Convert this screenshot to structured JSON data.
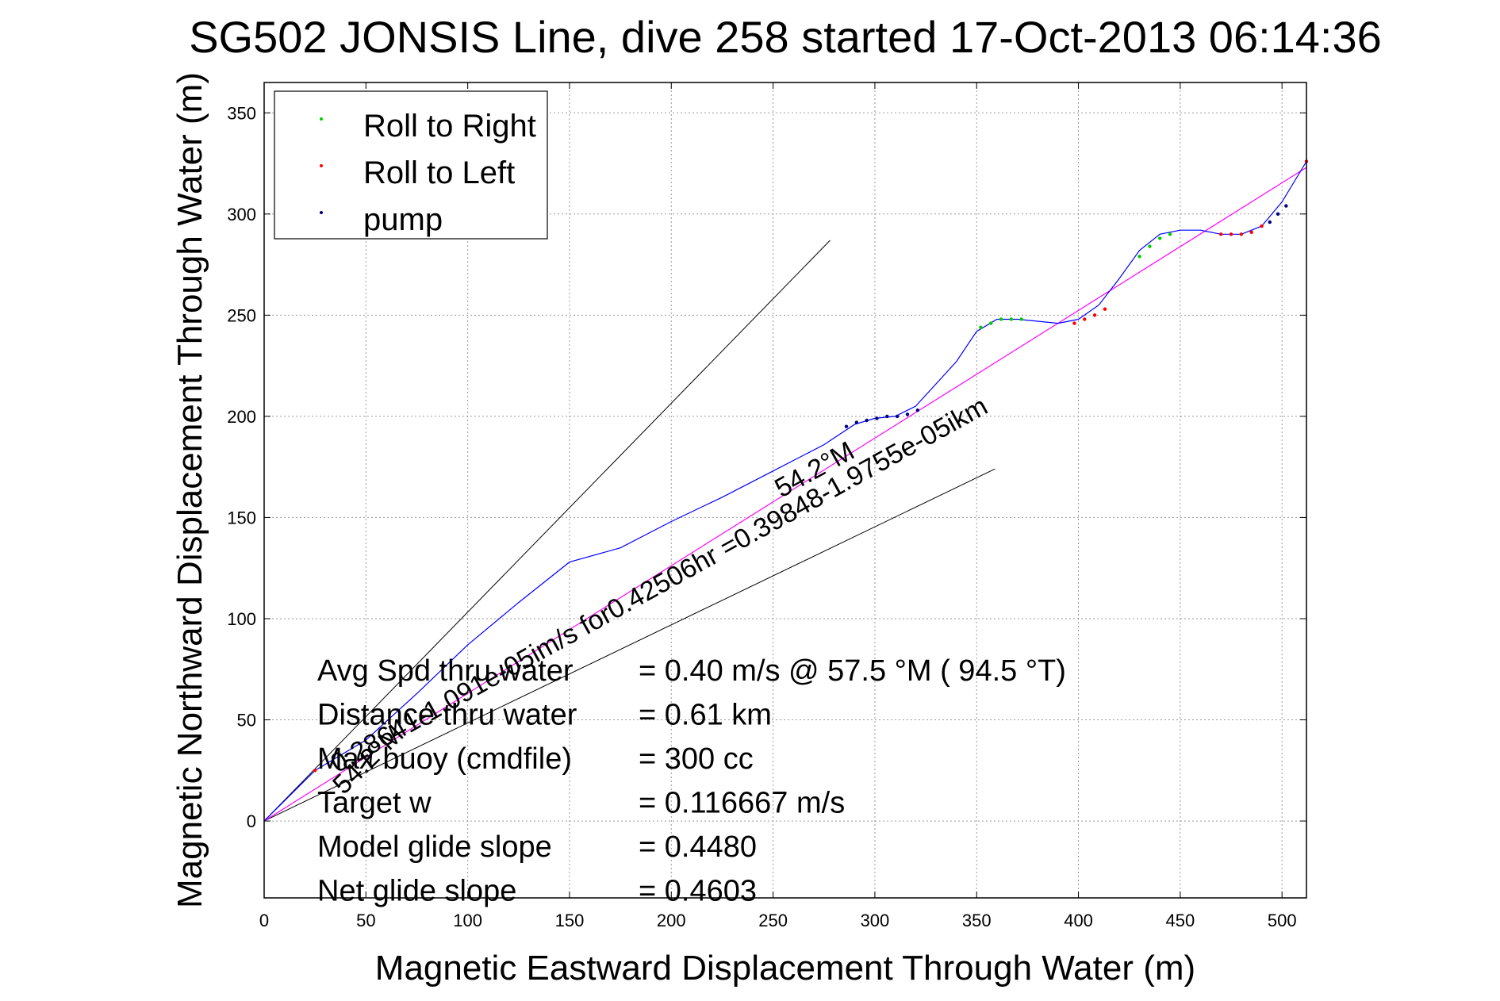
{
  "chart_data": {
    "type": "line",
    "title": "SG502 JONSIS Line, dive 258 started 17-Oct-2013 06:14:36",
    "xlabel": "Magnetic Eastward Displacement Through Water (m)",
    "ylabel": "Magnetic Northward Displacement Through Water (m)",
    "xlim": [
      0,
      512
    ],
    "ylim": [
      -38,
      365
    ],
    "xticks": [
      0,
      50,
      100,
      150,
      200,
      250,
      300,
      350,
      400,
      450,
      500
    ],
    "yticks": [
      0,
      50,
      100,
      150,
      200,
      250,
      300,
      350
    ],
    "grid": true,
    "legend_position": "top-left",
    "legend": [
      {
        "label": "Roll to Right",
        "color": "#00cc00"
      },
      {
        "label": "Roll to Left",
        "color": "#ff0000"
      },
      {
        "label": "pump",
        "color": "#000080"
      }
    ],
    "track": {
      "color": "#0000ff",
      "x": [
        0,
        25,
        50,
        75,
        100,
        125,
        150,
        175,
        200,
        225,
        250,
        275,
        290,
        300,
        310,
        320,
        330,
        340,
        350,
        360,
        370,
        380,
        390,
        400,
        410,
        420,
        430,
        440,
        450,
        460,
        470,
        480,
        490,
        500,
        512
      ],
      "y": [
        0,
        25,
        40,
        63,
        87,
        108,
        128,
        135,
        148,
        160,
        173,
        186,
        196,
        199,
        200,
        205,
        216,
        227,
        242,
        248,
        248,
        247,
        246,
        248,
        255,
        268,
        282,
        290,
        292,
        292,
        290,
        290,
        294,
        306,
        326
      ]
    },
    "roll_right_points": {
      "x": [
        352,
        357,
        362,
        367,
        372,
        430,
        435,
        440,
        445
      ],
      "y": [
        244,
        246,
        248,
        248,
        248,
        279,
        284,
        288,
        290
      ]
    },
    "roll_left_points": {
      "x": [
        25,
        398,
        403,
        408,
        413,
        470,
        475,
        480,
        485,
        490,
        512
      ],
      "y": [
        25,
        246,
        248,
        250,
        253,
        290,
        290,
        290,
        291,
        294,
        326
      ]
    },
    "pump_points": {
      "x": [
        286,
        291,
        296,
        301,
        306,
        311,
        316,
        321,
        494,
        498,
        502
      ],
      "y": [
        195,
        197,
        198,
        199,
        200,
        200,
        201,
        203,
        296,
        300,
        304
      ]
    },
    "target_line": {
      "color": "#ff00ff",
      "x": [
        0,
        512
      ],
      "y": [
        0,
        323
      ]
    },
    "heading_bounds": [
      {
        "x": [
          0,
          278
        ],
        "y": [
          0,
          287
        ]
      },
      {
        "x": [
          0,
          359
        ],
        "y": [
          0,
          174
        ]
      }
    ],
    "annotations": {
      "current_line": "0.28641-1.091e-05im/s for0.42506hr =0.39848-1.9755e-05ikm",
      "current_heading": "54.2°M",
      "start_heading": "54.2°M"
    },
    "stats": [
      {
        "label": "Avg Spd thru water",
        "value": "=  0.40 m/s @  57.5 °M ( 94.5 °T)"
      },
      {
        "label": "Distance thru water",
        "value": "=  0.61 km"
      },
      {
        "label": "Max buoy (cmdfile)",
        "value": "= 300 cc"
      },
      {
        "label": "Target w",
        "value": "= 0.116667 m/s"
      },
      {
        "label": "Model glide slope",
        "value": "= 0.4480"
      },
      {
        "label": "Net glide slope",
        "value": "= 0.4603"
      }
    ]
  }
}
